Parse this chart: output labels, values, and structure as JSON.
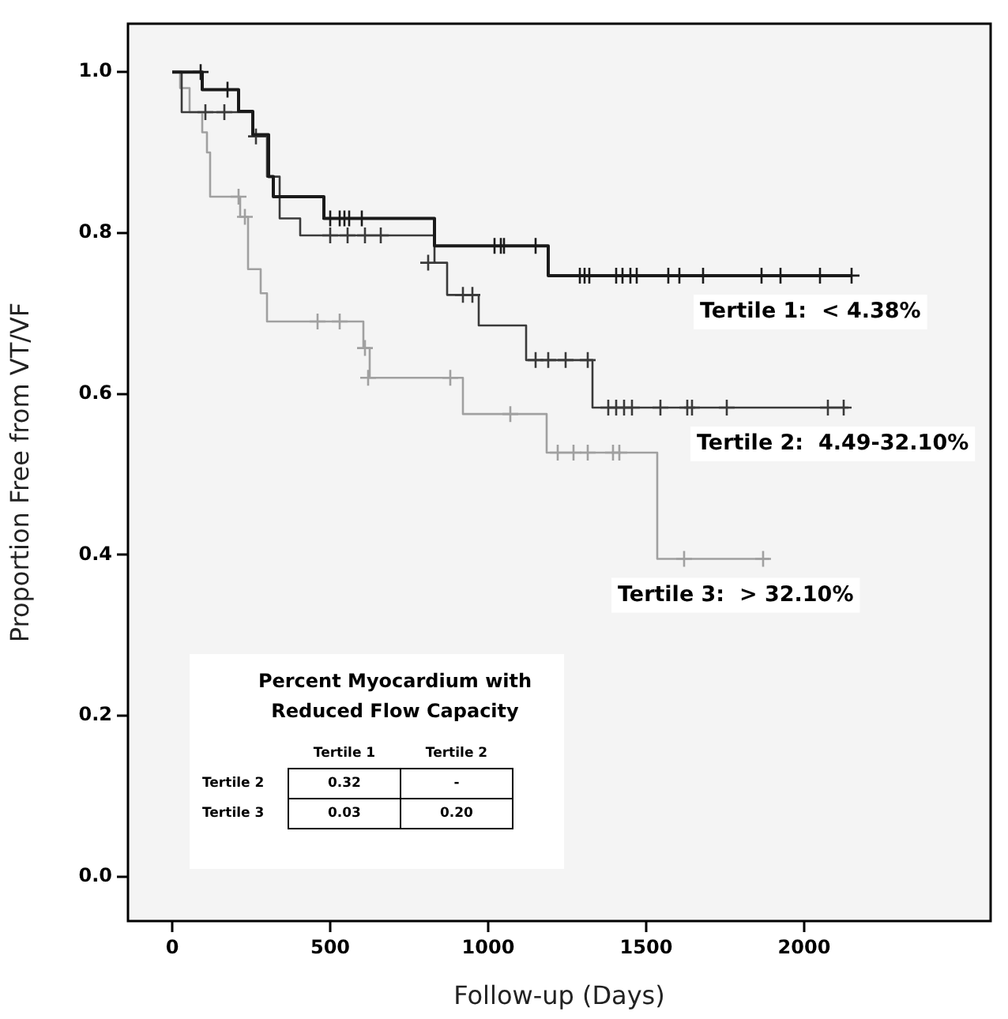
{
  "chart_data": {
    "type": "step",
    "xlabel": "Follow-up (Days)",
    "ylabel": "Proportion Free from VT/VF",
    "xlim": [
      -140,
      2590
    ],
    "ylim": [
      -0.055,
      1.06
    ],
    "xticks": [
      0,
      500,
      1000,
      1500,
      2000
    ],
    "yticks": [
      {
        "value": 0,
        "label": "0.0"
      },
      {
        "value": 0.2,
        "label": "0.2"
      },
      {
        "value": 0.4,
        "label": "0.4"
      },
      {
        "value": 0.6,
        "label": "0.6"
      },
      {
        "value": 0.8,
        "label": "0.8"
      },
      {
        "value": 1,
        "label": "1.0"
      }
    ],
    "grid": false,
    "legend": false,
    "series": [
      {
        "name": "Tertile 1:  < 4.38%",
        "color": "#1a1a1a",
        "x": [
          0,
          95,
          210,
          255,
          305,
          320,
          480,
          830,
          1190,
          2150
        ],
        "values": [
          1.0,
          0.978,
          0.951,
          0.922,
          0.87,
          0.845,
          0.818,
          0.784,
          0.747,
          0.747
        ]
      },
      {
        "name": "Tertile 2:  4.49-32.10%",
        "color": "#3a3a3a",
        "x": [
          0,
          30,
          255,
          300,
          340,
          405,
          830,
          870,
          970,
          1120,
          1330,
          2140
        ],
        "values": [
          1.0,
          0.95,
          0.92,
          0.87,
          0.818,
          0.797,
          0.763,
          0.723,
          0.685,
          0.642,
          0.583,
          0.583
        ]
      },
      {
        "name": "Tertile 3:  > 32.10%",
        "color": "#a0a0a0",
        "x": [
          0,
          25,
          55,
          95,
          110,
          120,
          215,
          240,
          280,
          300,
          605,
          625,
          920,
          1185,
          1535,
          1890
        ],
        "values": [
          1.0,
          0.98,
          0.95,
          0.925,
          0.9,
          0.845,
          0.82,
          0.755,
          0.725,
          0.69,
          0.657,
          0.62,
          0.575,
          0.527,
          0.395,
          0.395
        ]
      },
      {
        "type": "scatter",
        "marker": "cross",
        "color": "#1a1a1a",
        "x": [
          90,
          175,
          500,
          530,
          545,
          560,
          600,
          1020,
          1040,
          1050,
          1150,
          1290,
          1305,
          1320,
          1405,
          1425,
          1450,
          1470,
          1570,
          1605,
          1680,
          1865,
          1925,
          2050,
          2150
        ],
        "values": [
          1.0,
          0.978,
          0.818,
          0.818,
          0.818,
          0.818,
          0.818,
          0.784,
          0.784,
          0.784,
          0.784,
          0.747,
          0.747,
          0.747,
          0.747,
          0.747,
          0.747,
          0.747,
          0.747,
          0.747,
          0.747,
          0.747,
          0.747,
          0.747,
          0.747
        ]
      },
      {
        "type": "scatter",
        "marker": "cross",
        "color": "#3a3a3a",
        "x": [
          105,
          165,
          265,
          500,
          555,
          610,
          660,
          810,
          920,
          950,
          1150,
          1190,
          1245,
          1315,
          1380,
          1405,
          1430,
          1455,
          1545,
          1630,
          1645,
          1755,
          2075,
          2125
        ],
        "values": [
          0.95,
          0.95,
          0.92,
          0.797,
          0.797,
          0.797,
          0.797,
          0.763,
          0.723,
          0.723,
          0.642,
          0.642,
          0.642,
          0.642,
          0.583,
          0.583,
          0.583,
          0.583,
          0.583,
          0.583,
          0.583,
          0.583,
          0.583,
          0.583
        ]
      },
      {
        "type": "scatter",
        "marker": "cross",
        "color": "#a0a0a0",
        "x": [
          210,
          230,
          460,
          530,
          610,
          620,
          880,
          1070,
          1220,
          1270,
          1315,
          1395,
          1415,
          1620,
          1870
        ],
        "values": [
          0.845,
          0.82,
          0.69,
          0.69,
          0.657,
          0.62,
          0.62,
          0.575,
          0.527,
          0.527,
          0.527,
          0.527,
          0.527,
          0.395,
          0.395
        ]
      }
    ],
    "annotations": [
      "Percent Myocardium with Reduced Flow Capacity",
      "Tertile 1",
      "Tertile 2",
      "Tertile 2",
      "0.32",
      "-",
      "Tertile 3",
      "0.03",
      "0.20"
    ]
  }
}
